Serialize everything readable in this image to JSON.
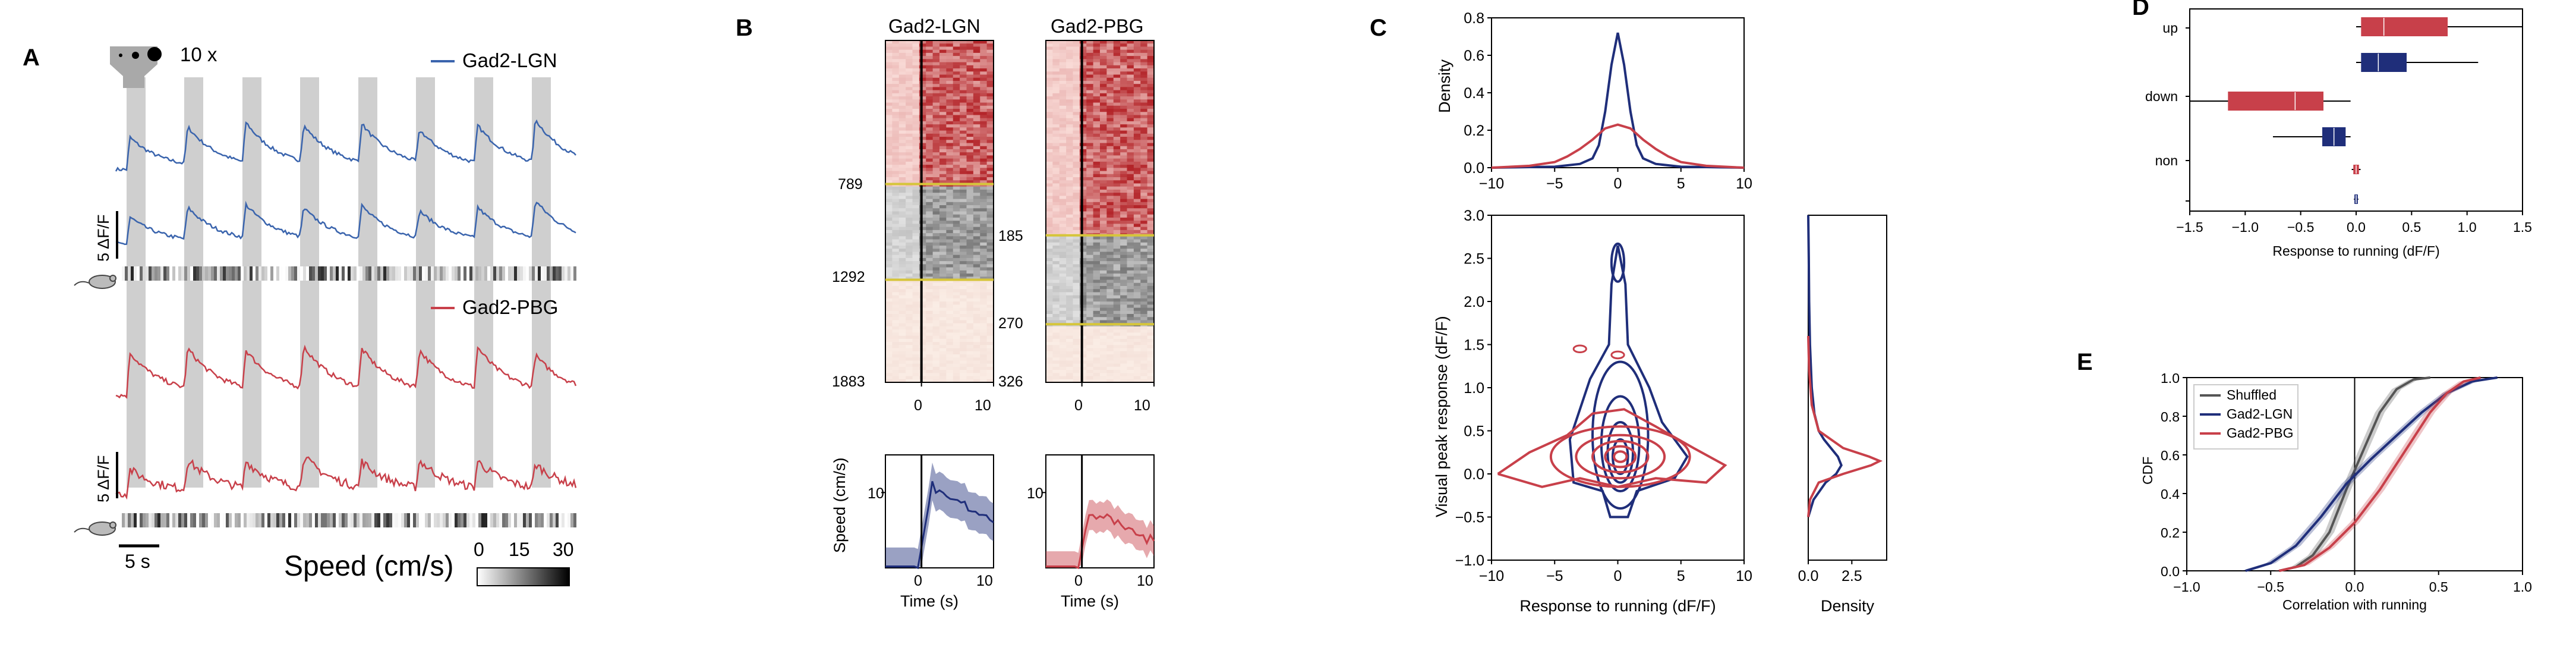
{
  "colors": {
    "lgn": "#3a64ad",
    "pbg": "#c8404a",
    "navy": "#1f2e7a",
    "red": "#c8404a",
    "gray": "#555555",
    "yellow": "#d6c53a",
    "stim": "#cfcfcf"
  },
  "panels": {
    "A": "A",
    "B": "B",
    "C": "C",
    "D": "D",
    "E": "E"
  },
  "panelA": {
    "stim_label": "10 x",
    "lgn_label": "Gad2-LGN",
    "pbg_label": "Gad2-PBG",
    "scale_label": "5 ΔF/F",
    "time_scale": "5 s",
    "speed_label": "Speed (cm/s)",
    "colorbar_ticks": [
      "0",
      "15",
      "30"
    ]
  },
  "panelB": {
    "titles": [
      "Gad2-LGN",
      "Gad2-PBG"
    ],
    "lgn_rows": [
      "789",
      "1292",
      "1883"
    ],
    "pbg_rows": [
      "185",
      "270",
      "326"
    ],
    "heat_xticks": [
      "0",
      "10"
    ],
    "speed_ylabel": "Speed (cm/s)",
    "speed_yticks": [
      "10"
    ],
    "speed_xticks": [
      "0",
      "10"
    ],
    "xlabel": "Time (s)"
  },
  "chart_data": [
    {
      "id": "C-top",
      "type": "line",
      "ylabel": "Density",
      "xlim": [
        -10,
        10
      ],
      "ylim": [
        0,
        0.8
      ],
      "xticks": [
        "−10",
        "−5",
        "0",
        "5",
        "10"
      ],
      "yticks": [
        "0.0",
        "0.2",
        "0.4",
        "0.6",
        "0.8"
      ],
      "series": [
        {
          "color": "navy",
          "x": [
            -10,
            -5,
            -3,
            -2,
            -1.5,
            -1,
            -0.5,
            0,
            0.5,
            1,
            1.5,
            2,
            3,
            5,
            10
          ],
          "y": [
            0,
            0.005,
            0.02,
            0.05,
            0.12,
            0.3,
            0.55,
            0.72,
            0.55,
            0.3,
            0.12,
            0.05,
            0.02,
            0.005,
            0
          ]
        },
        {
          "color": "red",
          "x": [
            -10,
            -7,
            -5,
            -4,
            -3,
            -2,
            -1,
            0,
            1,
            2,
            3,
            4,
            5,
            7,
            10
          ],
          "y": [
            0,
            0.01,
            0.03,
            0.06,
            0.1,
            0.15,
            0.21,
            0.23,
            0.21,
            0.15,
            0.1,
            0.06,
            0.03,
            0.01,
            0
          ]
        }
      ]
    },
    {
      "id": "C-main",
      "type": "scatter",
      "xlabel": "Response to running (dF/F)",
      "ylabel": "Visual peak response (dF/F)",
      "xlim": [
        -10,
        10
      ],
      "ylim": [
        -1,
        3
      ],
      "xticks": [
        "−10",
        "−5",
        "0",
        "5",
        "10"
      ],
      "yticks": [
        "−1.0",
        "−0.5",
        "0.0",
        "0.5",
        "1.0",
        "1.5",
        "2.0",
        "2.5",
        "3.0"
      ]
    },
    {
      "id": "C-right",
      "type": "line",
      "xlabel": "Density",
      "xlim": [
        0,
        4.5
      ],
      "ylim": [
        -1,
        3
      ],
      "xticks": [
        "0.0",
        "2.5"
      ],
      "series": [
        {
          "color": "navy",
          "y": [
            -0.5,
            -0.3,
            -0.1,
            0,
            0.1,
            0.2,
            0.3,
            0.4,
            0.5,
            0.7,
            1.0,
            1.5,
            2.0,
            2.5,
            3.0
          ],
          "x": [
            0,
            0.3,
            1.0,
            1.6,
            1.9,
            1.7,
            1.3,
            0.9,
            0.6,
            0.35,
            0.2,
            0.1,
            0.05,
            0.03,
            0
          ]
        },
        {
          "color": "red",
          "y": [
            -0.5,
            -0.3,
            -0.1,
            0,
            0.1,
            0.15,
            0.2,
            0.3,
            0.5,
            0.8,
            1.2,
            1.6
          ],
          "x": [
            0,
            0.1,
            0.6,
            2.0,
            3.6,
            4.1,
            3.5,
            2.0,
            0.6,
            0.2,
            0.05,
            0
          ]
        }
      ]
    },
    {
      "id": "D",
      "type": "bar",
      "xlabel": "Response to running (dF/F)",
      "xlim": [
        -1.5,
        1.5
      ],
      "xticks": [
        "−1.5",
        "−1.0",
        "−0.5",
        "0.0",
        "0.5",
        "1.0",
        "1.5"
      ],
      "categories": [
        "up",
        "down",
        "non"
      ],
      "boxes": [
        {
          "cat": "up",
          "color": "red",
          "q1": 0.05,
          "med": 0.25,
          "q3": 0.82,
          "wlo": 0.0,
          "whi": 1.5
        },
        {
          "cat": "up",
          "color": "navy",
          "q1": 0.05,
          "med": 0.2,
          "q3": 0.45,
          "wlo": 0.0,
          "whi": 1.1
        },
        {
          "cat": "down",
          "color": "red",
          "q1": -1.15,
          "med": -0.55,
          "q3": -0.3,
          "wlo": -1.5,
          "whi": -0.05
        },
        {
          "cat": "down",
          "color": "navy",
          "q1": -0.3,
          "med": -0.2,
          "q3": -0.1,
          "wlo": -0.75,
          "whi": -0.05
        },
        {
          "cat": "non",
          "color": "red",
          "q1": -0.02,
          "med": 0.0,
          "q3": 0.02,
          "wlo": -0.04,
          "whi": 0.04
        },
        {
          "cat": "non",
          "color": "navy",
          "q1": -0.01,
          "med": 0.0,
          "q3": 0.01,
          "wlo": -0.02,
          "whi": 0.02
        }
      ]
    },
    {
      "id": "E",
      "type": "line",
      "xlabel": "Correlation with running",
      "ylabel": "CDF",
      "xlim": [
        -1,
        1
      ],
      "ylim": [
        0,
        1
      ],
      "xticks": [
        "−1.0",
        "−0.5",
        "0.0",
        "0.5",
        "1.0"
      ],
      "yticks": [
        "0.0",
        "0.2",
        "0.4",
        "0.6",
        "0.8",
        "1.0"
      ],
      "legend": "top-left",
      "series": [
        {
          "name": "Shuffled",
          "color": "gray",
          "x": [
            -0.45,
            -0.35,
            -0.25,
            -0.15,
            -0.05,
            0.05,
            0.15,
            0.25,
            0.35,
            0.45
          ],
          "y": [
            0,
            0.02,
            0.08,
            0.2,
            0.42,
            0.62,
            0.82,
            0.94,
            0.99,
            1.0
          ]
        },
        {
          "name": "Gad2-LGN",
          "color": "navy",
          "x": [
            -0.65,
            -0.5,
            -0.35,
            -0.2,
            -0.05,
            0.1,
            0.25,
            0.4,
            0.55,
            0.7,
            0.85
          ],
          "y": [
            0,
            0.04,
            0.13,
            0.28,
            0.45,
            0.58,
            0.7,
            0.82,
            0.92,
            0.98,
            1.0
          ]
        },
        {
          "name": "Gad2-PBG",
          "color": "red",
          "x": [
            -0.45,
            -0.3,
            -0.15,
            0,
            0.15,
            0.3,
            0.45,
            0.55,
            0.65,
            0.75
          ],
          "y": [
            0,
            0.03,
            0.12,
            0.25,
            0.42,
            0.62,
            0.82,
            0.92,
            0.98,
            1.0
          ]
        }
      ]
    }
  ]
}
